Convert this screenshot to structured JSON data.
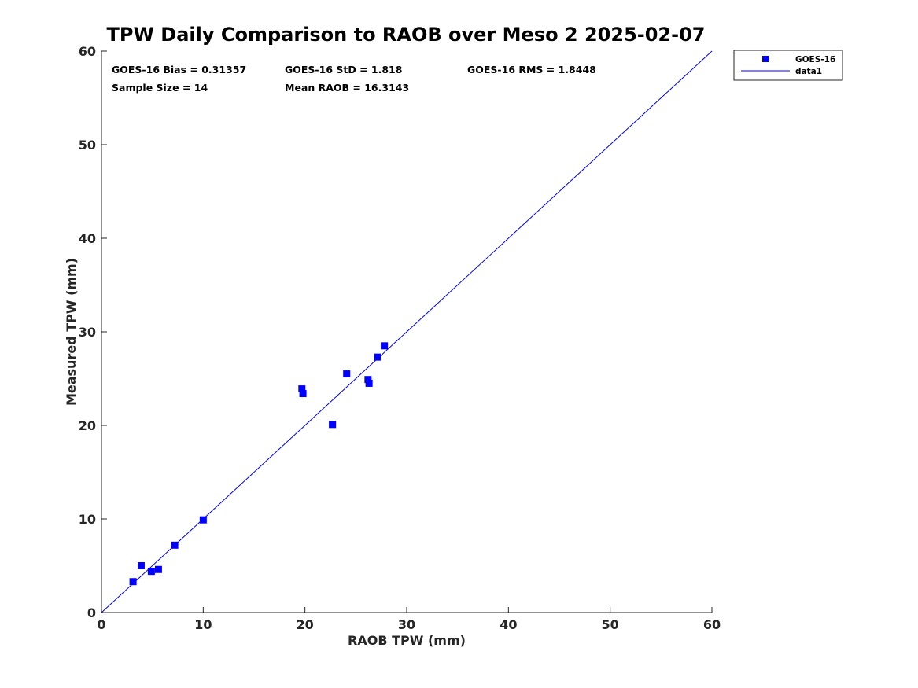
{
  "chart_data": {
    "type": "scatter",
    "title": "TPW Daily Comparison to RAOB over Meso 2 2025-02-07",
    "xlabel": "RAOB TPW (mm)",
    "ylabel": "Measured TPW (mm)",
    "xlim": [
      0,
      60
    ],
    "ylim": [
      0,
      60
    ],
    "xticks": [
      0,
      10,
      20,
      30,
      40,
      50,
      60
    ],
    "yticks": [
      0,
      10,
      20,
      30,
      40,
      50,
      60
    ],
    "grid": false,
    "legend_position": "outside-top-right",
    "series": [
      {
        "name": "GOES-16",
        "kind": "scatter",
        "marker": "square",
        "color": "#0000ff",
        "points": [
          {
            "x": 3.1,
            "y": 3.3
          },
          {
            "x": 3.9,
            "y": 5.0
          },
          {
            "x": 4.9,
            "y": 4.4
          },
          {
            "x": 5.6,
            "y": 4.6
          },
          {
            "x": 7.2,
            "y": 7.2
          },
          {
            "x": 10.0,
            "y": 9.9
          },
          {
            "x": 19.7,
            "y": 23.9
          },
          {
            "x": 19.8,
            "y": 23.4
          },
          {
            "x": 22.7,
            "y": 20.1
          },
          {
            "x": 24.1,
            "y": 25.5
          },
          {
            "x": 26.2,
            "y": 24.9
          },
          {
            "x": 26.3,
            "y": 24.5
          },
          {
            "x": 27.1,
            "y": 27.3
          },
          {
            "x": 27.8,
            "y": 28.5
          }
        ]
      },
      {
        "name": "data1",
        "kind": "line",
        "color": "#0000ff",
        "points": [
          {
            "x": 0,
            "y": 0
          },
          {
            "x": 60,
            "y": 60
          }
        ]
      }
    ],
    "annotations": [
      {
        "id": "bias",
        "text": "GOES-16 Bias = 0.31357"
      },
      {
        "id": "std",
        "text": "GOES-16 StD = 1.818"
      },
      {
        "id": "rms",
        "text": "GOES-16 RMS = 1.8448"
      },
      {
        "id": "sample",
        "text": "Sample Size = 14"
      },
      {
        "id": "mean",
        "text": "Mean RAOB = 16.3143"
      }
    ]
  }
}
